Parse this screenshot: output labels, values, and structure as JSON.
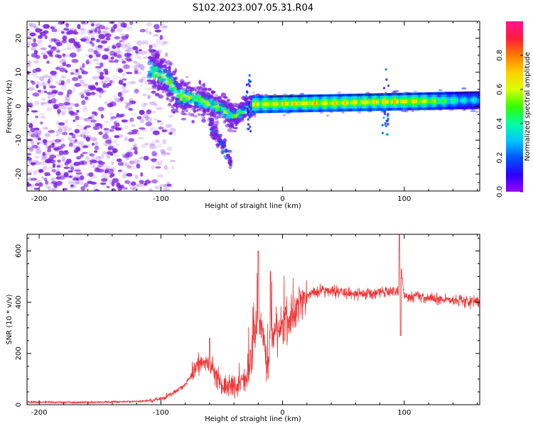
{
  "figure_title": "S102.2023.007.05.31.R04",
  "colors": {
    "snr_line": "#ee3333",
    "spectrogram_scatter": "#7a1fe0",
    "colormap": [
      "#9900ff",
      "#2a00ff",
      "#0055ff",
      "#00c8ff",
      "#00ffa0",
      "#33ff00",
      "#d9ff00",
      "#ffd000",
      "#ff7a00",
      "#ff1a3a",
      "#ff1493"
    ]
  },
  "chart_data": [
    {
      "type": "heatmap",
      "title": "",
      "xlabel": "Height of straight line (km)",
      "ylabel": "Frequency (Hz)",
      "xlim": [
        -210,
        162
      ],
      "ylim": [
        -25,
        25
      ],
      "x_ticks": [
        -200,
        -100,
        0,
        100
      ],
      "x_tick_labels": [
        "-200",
        "-100",
        "0",
        "100"
      ],
      "y_ticks": [
        -20,
        -10,
        0,
        10,
        20
      ],
      "y_tick_labels": [
        "-20",
        "-10",
        "0",
        "10",
        "20"
      ],
      "colorbar": {
        "label": "Normalized spectral amplitude",
        "range": [
          0,
          1
        ],
        "ticks": [
          0.0,
          0.2,
          0.4,
          0.6,
          0.8
        ],
        "tick_labels": [
          "0.0",
          "0.2",
          "0.4",
          "0.6",
          "0.8"
        ]
      },
      "features": {
        "noise_region_x": [
          -210,
          -100
        ],
        "transition_trend": [
          {
            "x": -110,
            "y": 11
          },
          {
            "x": -95,
            "y": 8
          },
          {
            "x": -85,
            "y": 3
          },
          {
            "x": -70,
            "y": 2
          },
          {
            "x": -55,
            "y": 0
          },
          {
            "x": -40,
            "y": -3
          },
          {
            "x": -25,
            "y": 0
          },
          {
            "x": -20,
            "y": 0.5
          }
        ],
        "secondary_branch": [
          {
            "x": -60,
            "y": -5
          },
          {
            "x": -48,
            "y": -12
          },
          {
            "x": -42,
            "y": -17
          }
        ],
        "carrier_line": {
          "x_start": -25,
          "x_end": 162,
          "y_start": 0.5,
          "y_end": 1.8,
          "peak_amplitude": 0.95
        },
        "spike_positions_x": [
          -28,
          85
        ]
      }
    },
    {
      "type": "line",
      "title": "",
      "xlabel": "Height of straight line (km)",
      "ylabel": "SNR (10 * v/v)",
      "xlim": [
        -210,
        162
      ],
      "ylim": [
        0,
        665
      ],
      "x_ticks": [
        -200,
        -100,
        0,
        100
      ],
      "x_tick_labels": [
        "-200",
        "-100",
        "0",
        "100"
      ],
      "y_ticks": [
        0,
        200,
        400,
        600
      ],
      "y_tick_labels": [
        "0",
        "200",
        "400",
        "600"
      ],
      "series": [
        {
          "name": "SNR",
          "x": [
            -210,
            -190,
            -170,
            -150,
            -130,
            -110,
            -100,
            -90,
            -80,
            -70,
            -60,
            -55,
            -50,
            -40,
            -30,
            -25,
            -20,
            -15,
            -12,
            -10,
            -5,
            0,
            5,
            10,
            15,
            20,
            25,
            30,
            40,
            50,
            60,
            70,
            80,
            90,
            95,
            97,
            100,
            110,
            120,
            130,
            140,
            150,
            162
          ],
          "y": [
            10,
            10,
            9,
            10,
            11,
            15,
            22,
            45,
            80,
            150,
            170,
            110,
            80,
            70,
            100,
            200,
            350,
            250,
            100,
            280,
            300,
            310,
            330,
            360,
            410,
            425,
            440,
            445,
            445,
            440,
            430,
            435,
            440,
            445,
            440,
            550,
            420,
            425,
            415,
            410,
            410,
            405,
            400
          ]
        }
      ],
      "peaks": [
        {
          "x": -60,
          "y": 260
        },
        {
          "x": -20,
          "y": 600
        },
        {
          "x": -10,
          "y": 520
        },
        {
          "x": 96,
          "y": 665
        },
        {
          "x": 97,
          "y": 270
        }
      ]
    }
  ]
}
